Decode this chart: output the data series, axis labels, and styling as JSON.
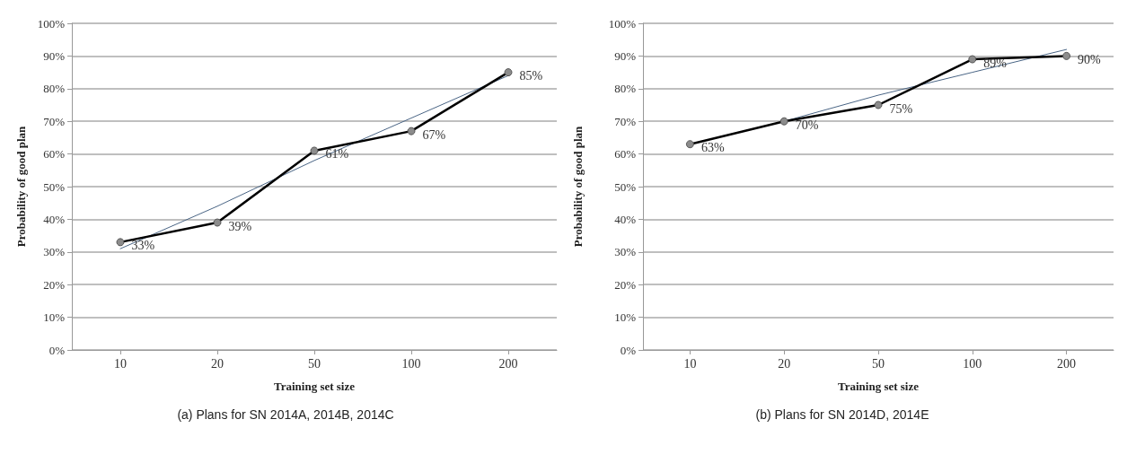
{
  "chart_data": [
    {
      "type": "line",
      "title": "(a) Plans for SN 2014A, 2014B, 2014C",
      "xlabel": "Training set size",
      "ylabel": "Probability of good plan",
      "categories": [
        "10",
        "20",
        "50",
        "100",
        "200"
      ],
      "ylim": [
        0,
        100
      ],
      "yticks": [
        {
          "value": 0,
          "label": "0%"
        },
        {
          "value": 10,
          "label": "10%"
        },
        {
          "value": 20,
          "label": "20%"
        },
        {
          "value": 30,
          "label": "30%"
        },
        {
          "value": 40,
          "label": "40%"
        },
        {
          "value": 50,
          "label": "50%"
        },
        {
          "value": 60,
          "label": "60%"
        },
        {
          "value": 70,
          "label": "70%"
        },
        {
          "value": 80,
          "label": "80%"
        },
        {
          "value": 90,
          "label": "90%"
        },
        {
          "value": 100,
          "label": "100%"
        }
      ],
      "grid": "y",
      "marker": "circle",
      "series": [
        {
          "color": "#000000",
          "values": [
            33,
            39,
            61,
            67,
            85
          ],
          "value_labels": [
            "33%",
            "39%",
            "61%",
            "67%",
            "85%"
          ]
        },
        {
          "type": "line",
          "color": "#4a6585",
          "x": [
            "10",
            "20",
            "50",
            "100",
            "200"
          ],
          "values": [
            31,
            44,
            58,
            71,
            84
          ],
          "marker": "none"
        }
      ]
    },
    {
      "type": "line",
      "title": "(b) Plans for SN 2014D, 2014E",
      "xlabel": "Training set size",
      "ylabel": "Probability of good plan",
      "categories": [
        "10",
        "20",
        "50",
        "100",
        "200"
      ],
      "ylim": [
        0,
        100
      ],
      "yticks": [
        {
          "value": 0,
          "label": "0%"
        },
        {
          "value": 10,
          "label": "10%"
        },
        {
          "value": 20,
          "label": "20%"
        },
        {
          "value": 30,
          "label": "30%"
        },
        {
          "value": 40,
          "label": "40%"
        },
        {
          "value": 50,
          "label": "50%"
        },
        {
          "value": 60,
          "label": "60%"
        },
        {
          "value": 70,
          "label": "70%"
        },
        {
          "value": 80,
          "label": "80%"
        },
        {
          "value": 90,
          "label": "90%"
        },
        {
          "value": 100,
          "label": "100%"
        }
      ],
      "grid": "y",
      "marker": "circle",
      "series": [
        {
          "color": "#000000",
          "values": [
            63,
            70,
            75,
            89,
            90
          ],
          "value_labels": [
            "63%",
            "70%",
            "75%",
            "89%",
            "90%"
          ]
        },
        {
          "type": "line",
          "color": "#4a6585",
          "x": [
            "10",
            "20",
            "50",
            "100",
            "200"
          ],
          "values": [
            63,
            70,
            78,
            85,
            92
          ],
          "marker": "none"
        }
      ]
    }
  ]
}
